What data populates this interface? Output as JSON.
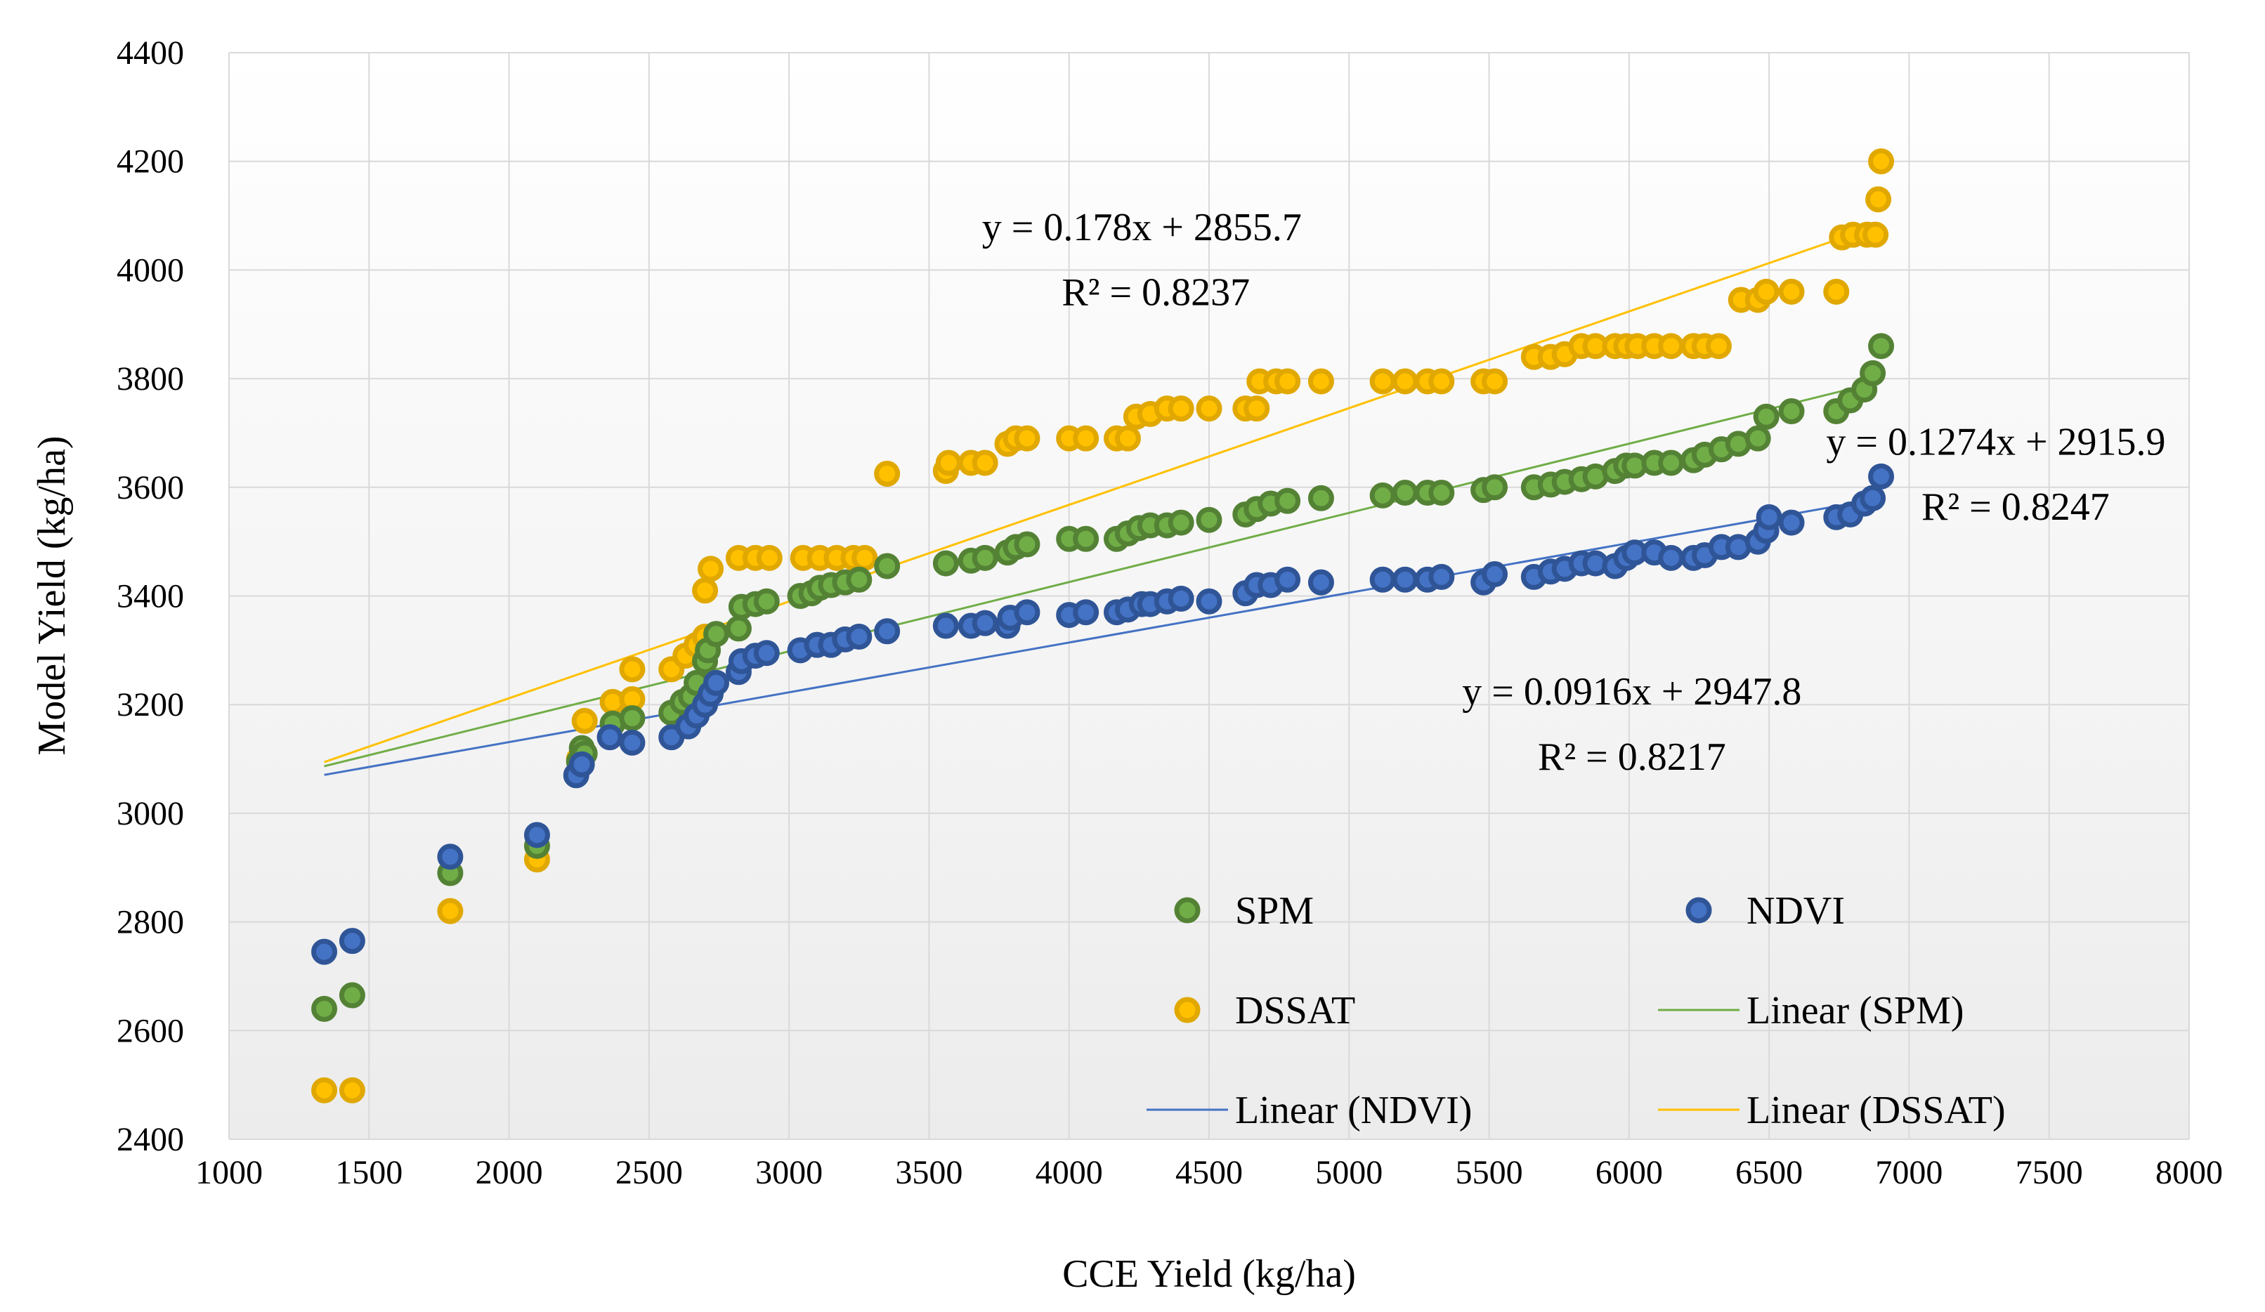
{
  "chart_data": {
    "type": "scatter",
    "xlabel": "CCE Yield (kg/ha)",
    "ylabel": "Model Yield (kg/ha)",
    "xlim": [
      1000,
      8000
    ],
    "ylim": [
      2400,
      4400
    ],
    "x_ticks": [
      "1000",
      "1500",
      "2000",
      "2500",
      "3000",
      "3500",
      "4000",
      "4500",
      "5000",
      "5500",
      "6000",
      "6500",
      "7000",
      "7500",
      "8000"
    ],
    "y_ticks": [
      "2400",
      "2600",
      "2800",
      "3000",
      "3200",
      "3400",
      "3600",
      "3800",
      "4000",
      "4200",
      "4400"
    ],
    "grid": true,
    "legend_placement": "bottom-right",
    "series": [
      {
        "name": "SPM",
        "color": "#70AD47",
        "edge_color": "#548235",
        "points": [
          [
            1340,
            2640
          ],
          [
            1440,
            2665
          ],
          [
            1790,
            2890
          ],
          [
            2100,
            2940
          ],
          [
            2250,
            3095
          ],
          [
            2260,
            3120
          ],
          [
            2270,
            3110
          ],
          [
            2370,
            3165
          ],
          [
            2440,
            3175
          ],
          [
            2580,
            3185
          ],
          [
            2620,
            3205
          ],
          [
            2650,
            3215
          ],
          [
            2670,
            3240
          ],
          [
            2700,
            3280
          ],
          [
            2710,
            3300
          ],
          [
            2740,
            3330
          ],
          [
            2820,
            3340
          ],
          [
            2830,
            3380
          ],
          [
            2880,
            3385
          ],
          [
            2920,
            3390
          ],
          [
            3040,
            3400
          ],
          [
            3080,
            3405
          ],
          [
            3110,
            3415
          ],
          [
            3150,
            3420
          ],
          [
            3200,
            3425
          ],
          [
            3250,
            3430
          ],
          [
            3350,
            3455
          ],
          [
            3560,
            3460
          ],
          [
            3650,
            3465
          ],
          [
            3700,
            3470
          ],
          [
            3780,
            3480
          ],
          [
            3810,
            3490
          ],
          [
            3850,
            3495
          ],
          [
            4000,
            3505
          ],
          [
            4060,
            3505
          ],
          [
            4170,
            3505
          ],
          [
            4210,
            3515
          ],
          [
            4250,
            3525
          ],
          [
            4290,
            3530
          ],
          [
            4350,
            3530
          ],
          [
            4400,
            3535
          ],
          [
            4500,
            3540
          ],
          [
            4630,
            3550
          ],
          [
            4670,
            3560
          ],
          [
            4720,
            3570
          ],
          [
            4780,
            3575
          ],
          [
            4900,
            3580
          ],
          [
            5120,
            3585
          ],
          [
            5200,
            3590
          ],
          [
            5280,
            3590
          ],
          [
            5330,
            3590
          ],
          [
            5480,
            3595
          ],
          [
            5520,
            3600
          ],
          [
            5660,
            3600
          ],
          [
            5720,
            3605
          ],
          [
            5770,
            3610
          ],
          [
            5830,
            3615
          ],
          [
            5880,
            3620
          ],
          [
            5950,
            3630
          ],
          [
            5990,
            3640
          ],
          [
            6020,
            3640
          ],
          [
            6090,
            3645
          ],
          [
            6150,
            3645
          ],
          [
            6230,
            3650
          ],
          [
            6270,
            3660
          ],
          [
            6330,
            3670
          ],
          [
            6390,
            3680
          ],
          [
            6460,
            3690
          ],
          [
            6490,
            3730
          ],
          [
            6580,
            3740
          ],
          [
            6740,
            3740
          ],
          [
            6790,
            3760
          ],
          [
            6840,
            3780
          ],
          [
            6870,
            3810
          ],
          [
            6900,
            3860
          ]
        ],
        "trend": {
          "name": "Linear (SPM)",
          "slope": 0.1274,
          "intercept": 2915.9,
          "x_range": [
            1340,
            6900
          ],
          "equation": "y = 0.1274x + 2915.9",
          "r2": "R² = 0.8247"
        }
      },
      {
        "name": "NDVI",
        "color": "#4472C4",
        "edge_color": "#2F5597",
        "points": [
          [
            1340,
            2745
          ],
          [
            1440,
            2765
          ],
          [
            1790,
            2920
          ],
          [
            2100,
            2960
          ],
          [
            2240,
            3070
          ],
          [
            2260,
            3090
          ],
          [
            2360,
            3140
          ],
          [
            2440,
            3130
          ],
          [
            2580,
            3140
          ],
          [
            2640,
            3160
          ],
          [
            2670,
            3180
          ],
          [
            2700,
            3200
          ],
          [
            2720,
            3220
          ],
          [
            2740,
            3240
          ],
          [
            2820,
            3260
          ],
          [
            2830,
            3280
          ],
          [
            2880,
            3290
          ],
          [
            2920,
            3295
          ],
          [
            3040,
            3300
          ],
          [
            3100,
            3310
          ],
          [
            3150,
            3310
          ],
          [
            3200,
            3320
          ],
          [
            3250,
            3325
          ],
          [
            3350,
            3335
          ],
          [
            3560,
            3345
          ],
          [
            3650,
            3345
          ],
          [
            3700,
            3350
          ],
          [
            3780,
            3345
          ],
          [
            3790,
            3360
          ],
          [
            3850,
            3370
          ],
          [
            4000,
            3365
          ],
          [
            4060,
            3370
          ],
          [
            4170,
            3370
          ],
          [
            4210,
            3375
          ],
          [
            4260,
            3385
          ],
          [
            4290,
            3385
          ],
          [
            4350,
            3390
          ],
          [
            4400,
            3395
          ],
          [
            4500,
            3390
          ],
          [
            4630,
            3405
          ],
          [
            4670,
            3420
          ],
          [
            4720,
            3420
          ],
          [
            4780,
            3430
          ],
          [
            4900,
            3425
          ],
          [
            5120,
            3430
          ],
          [
            5200,
            3430
          ],
          [
            5280,
            3430
          ],
          [
            5330,
            3435
          ],
          [
            5480,
            3425
          ],
          [
            5520,
            3440
          ],
          [
            5660,
            3435
          ],
          [
            5720,
            3445
          ],
          [
            5770,
            3450
          ],
          [
            5830,
            3460
          ],
          [
            5880,
            3460
          ],
          [
            5950,
            3455
          ],
          [
            5990,
            3470
          ],
          [
            6020,
            3480
          ],
          [
            6090,
            3480
          ],
          [
            6150,
            3470
          ],
          [
            6230,
            3470
          ],
          [
            6270,
            3475
          ],
          [
            6330,
            3490
          ],
          [
            6390,
            3490
          ],
          [
            6460,
            3500
          ],
          [
            6490,
            3520
          ],
          [
            6500,
            3545
          ],
          [
            6580,
            3535
          ],
          [
            6740,
            3545
          ],
          [
            6790,
            3550
          ],
          [
            6840,
            3570
          ],
          [
            6870,
            3580
          ],
          [
            6900,
            3620
          ]
        ],
        "trend": {
          "name": "Linear (NDVI)",
          "slope": 0.0916,
          "intercept": 2947.8,
          "x_range": [
            1340,
            6900
          ],
          "equation": "y = 0.0916x + 2947.8",
          "r2": "R² = 0.8217"
        }
      },
      {
        "name": "DSSAT",
        "color": "#FFC000",
        "edge_color": "#E0A800",
        "points": [
          [
            1340,
            2490
          ],
          [
            1440,
            2490
          ],
          [
            1790,
            2820
          ],
          [
            2100,
            2915
          ],
          [
            2250,
            3100
          ],
          [
            2270,
            3170
          ],
          [
            2370,
            3205
          ],
          [
            2440,
            3210
          ],
          [
            2440,
            3265
          ],
          [
            2580,
            3265
          ],
          [
            2630,
            3290
          ],
          [
            2670,
            3310
          ],
          [
            2700,
            3325
          ],
          [
            2700,
            3410
          ],
          [
            2720,
            3450
          ],
          [
            2820,
            3470
          ],
          [
            2880,
            3470
          ],
          [
            2930,
            3470
          ],
          [
            3050,
            3470
          ],
          [
            3110,
            3470
          ],
          [
            3170,
            3470
          ],
          [
            3230,
            3470
          ],
          [
            3270,
            3470
          ],
          [
            3350,
            3625
          ],
          [
            3560,
            3630
          ],
          [
            3570,
            3645
          ],
          [
            3650,
            3645
          ],
          [
            3700,
            3645
          ],
          [
            3780,
            3680
          ],
          [
            3810,
            3690
          ],
          [
            3850,
            3690
          ],
          [
            4000,
            3690
          ],
          [
            4060,
            3690
          ],
          [
            4170,
            3690
          ],
          [
            4210,
            3690
          ],
          [
            4240,
            3730
          ],
          [
            4290,
            3735
          ],
          [
            4350,
            3745
          ],
          [
            4400,
            3745
          ],
          [
            4500,
            3745
          ],
          [
            4630,
            3745
          ],
          [
            4670,
            3745
          ],
          [
            4680,
            3795
          ],
          [
            4740,
            3795
          ],
          [
            4780,
            3795
          ],
          [
            4900,
            3795
          ],
          [
            5120,
            3795
          ],
          [
            5200,
            3795
          ],
          [
            5280,
            3795
          ],
          [
            5330,
            3795
          ],
          [
            5480,
            3795
          ],
          [
            5520,
            3795
          ],
          [
            5660,
            3840
          ],
          [
            5720,
            3840
          ],
          [
            5770,
            3845
          ],
          [
            5830,
            3860
          ],
          [
            5880,
            3860
          ],
          [
            5950,
            3860
          ],
          [
            5990,
            3860
          ],
          [
            6030,
            3860
          ],
          [
            6090,
            3860
          ],
          [
            6150,
            3860
          ],
          [
            6230,
            3860
          ],
          [
            6270,
            3860
          ],
          [
            6320,
            3860
          ],
          [
            6400,
            3945
          ],
          [
            6460,
            3945
          ],
          [
            6490,
            3960
          ],
          [
            6580,
            3960
          ],
          [
            6740,
            3960
          ],
          [
            6760,
            4060
          ],
          [
            6800,
            4065
          ],
          [
            6850,
            4065
          ],
          [
            6880,
            4065
          ],
          [
            6890,
            4130
          ],
          [
            6900,
            4200
          ]
        ],
        "trend": {
          "name": "Linear (DSSAT)",
          "slope": 0.178,
          "intercept": 2855.7,
          "x_range": [
            1340,
            6900
          ],
          "equation": "y = 0.178x + 2855.7",
          "r2": "R² = 0.8237"
        }
      }
    ],
    "annotations": [
      {
        "series": "DSSAT",
        "text": "y = 0.178x + 2855.7",
        "x": 4260,
        "y": 4055
      },
      {
        "series": "DSSAT",
        "text": "R² = 0.8237",
        "x": 4310,
        "y": 3935
      },
      {
        "series": "SPM",
        "text": "y = 0.1274x + 2915.9",
        "x": 7310,
        "y": 3660
      },
      {
        "series": "SPM",
        "text": "R² = 0.8247",
        "x": 7380,
        "y": 3540
      },
      {
        "series": "NDVI",
        "text": "y = 0.0916x + 2947.8",
        "x": 6010,
        "y": 3200
      },
      {
        "series": "NDVI",
        "text": "R² = 0.8217",
        "x": 6010,
        "y": 3080
      }
    ],
    "legend": [
      {
        "label": "SPM",
        "marker": "circle",
        "series": "SPM"
      },
      {
        "label": "NDVI",
        "marker": "circle",
        "series": "NDVI"
      },
      {
        "label": "DSSAT",
        "marker": "circle",
        "series": "DSSAT"
      },
      {
        "label": "Linear (SPM)",
        "marker": "line",
        "series": "SPM"
      },
      {
        "label": "Linear (NDVI)",
        "marker": "line",
        "series": "NDVI"
      },
      {
        "label": "Linear (DSSAT)",
        "marker": "line",
        "series": "DSSAT"
      }
    ],
    "grid_color": "#D9D9D9"
  }
}
